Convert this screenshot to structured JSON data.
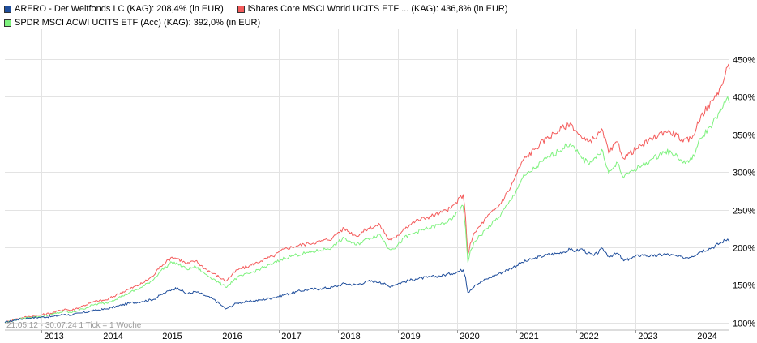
{
  "chart_data": {
    "type": "line",
    "legend_position": "top-left",
    "grid": true,
    "ylabel_side": "right",
    "ylim": [
      90,
      490
    ],
    "xlim": [
      2012.39,
      2024.58
    ],
    "y_ticks": [
      {
        "value": 100,
        "label": "100%"
      },
      {
        "value": 150,
        "label": "150%"
      },
      {
        "value": 200,
        "label": "200%"
      },
      {
        "value": 250,
        "label": "250%"
      },
      {
        "value": 300,
        "label": "300%"
      },
      {
        "value": 350,
        "label": "350%"
      },
      {
        "value": 400,
        "label": "400%"
      },
      {
        "value": 450,
        "label": "450%"
      }
    ],
    "x_ticks": [
      {
        "value": 2013,
        "label": "2013"
      },
      {
        "value": 2014,
        "label": "2014"
      },
      {
        "value": 2015,
        "label": "2015"
      },
      {
        "value": 2016,
        "label": "2016"
      },
      {
        "value": 2017,
        "label": "2017"
      },
      {
        "value": 2018,
        "label": "2018"
      },
      {
        "value": 2019,
        "label": "2019"
      },
      {
        "value": 2020,
        "label": "2020"
      },
      {
        "value": 2021,
        "label": "2021"
      },
      {
        "value": 2022,
        "label": "2022"
      },
      {
        "value": 2023,
        "label": "2023"
      },
      {
        "value": 2024,
        "label": "2024"
      }
    ],
    "footnote": "21.05.12 - 30.07.24   1 Tick = 1 Woche",
    "series": [
      {
        "name": "ARERO - Der Weltfonds LC (KAG): 208,4% (in EUR)",
        "color": "#1f4e9c",
        "swatch": "#1f4e9c",
        "x": [
          2012.39,
          2012.6,
          2012.8,
          2013.0,
          2013.2,
          2013.4,
          2013.5,
          2013.7,
          2013.9,
          2014.1,
          2014.3,
          2014.5,
          2014.7,
          2014.9,
          2015.0,
          2015.1,
          2015.2,
          2015.3,
          2015.45,
          2015.6,
          2015.75,
          2015.9,
          2016.05,
          2016.1,
          2016.3,
          2016.5,
          2016.7,
          2016.9,
          2017.1,
          2017.3,
          2017.5,
          2017.7,
          2017.9,
          2018.0,
          2018.1,
          2018.3,
          2018.5,
          2018.7,
          2018.85,
          2018.97,
          2019.1,
          2019.3,
          2019.5,
          2019.7,
          2019.9,
          2020.1,
          2020.14,
          2020.18,
          2020.22,
          2020.3,
          2020.5,
          2020.7,
          2020.9,
          2021.1,
          2021.3,
          2021.5,
          2021.7,
          2021.9,
          2022.0,
          2022.1,
          2022.2,
          2022.3,
          2022.45,
          2022.55,
          2022.7,
          2022.8,
          2022.9,
          2023.1,
          2023.3,
          2023.5,
          2023.7,
          2023.8,
          2023.95,
          2024.1,
          2024.3,
          2024.45,
          2024.55,
          2024.58
        ],
        "y": [
          100,
          104,
          106,
          107,
          108,
          111,
          110,
          113,
          116,
          118,
          122,
          126,
          128,
          131,
          136,
          140,
          144,
          146,
          138,
          141,
          136,
          131,
          122,
          118,
          126,
          128,
          130,
          133,
          137,
          141,
          144,
          145,
          147,
          149,
          152,
          150,
          155,
          154,
          148,
          151,
          154,
          158,
          160,
          162,
          165,
          170,
          160,
          140,
          143,
          150,
          158,
          165,
          172,
          180,
          185,
          190,
          192,
          197,
          195,
          198,
          192,
          189,
          198,
          188,
          192,
          182,
          185,
          190,
          188,
          191,
          188,
          186,
          188,
          195,
          200,
          207,
          211,
          208
        ]
      },
      {
        "name": "iShares Core MSCI World UCITS ETF ... (KAG): 436,8% (in EUR)",
        "color": "#f45b5b",
        "swatch": "#f45b5b",
        "x": [
          2012.39,
          2012.6,
          2012.8,
          2013.0,
          2013.2,
          2013.4,
          2013.5,
          2013.7,
          2013.9,
          2014.1,
          2014.3,
          2014.5,
          2014.7,
          2014.9,
          2015.0,
          2015.1,
          2015.2,
          2015.3,
          2015.45,
          2015.6,
          2015.75,
          2015.9,
          2016.05,
          2016.1,
          2016.3,
          2016.5,
          2016.7,
          2016.9,
          2017.1,
          2017.3,
          2017.5,
          2017.7,
          2017.9,
          2018.0,
          2018.1,
          2018.3,
          2018.5,
          2018.7,
          2018.85,
          2018.97,
          2019.1,
          2019.3,
          2019.5,
          2019.7,
          2019.9,
          2020.1,
          2020.14,
          2020.18,
          2020.22,
          2020.3,
          2020.5,
          2020.7,
          2020.9,
          2021.1,
          2021.3,
          2021.5,
          2021.7,
          2021.9,
          2022.0,
          2022.1,
          2022.2,
          2022.3,
          2022.45,
          2022.55,
          2022.7,
          2022.8,
          2022.9,
          2023.1,
          2023.3,
          2023.5,
          2023.7,
          2023.8,
          2023.95,
          2024.1,
          2024.3,
          2024.45,
          2024.55,
          2024.58
        ],
        "y": [
          100,
          105,
          108,
          110,
          113,
          118,
          116,
          122,
          128,
          130,
          138,
          145,
          152,
          163,
          175,
          180,
          187,
          185,
          178,
          182,
          172,
          165,
          158,
          155,
          170,
          175,
          182,
          188,
          198,
          202,
          205,
          208,
          212,
          220,
          225,
          215,
          225,
          230,
          210,
          212,
          225,
          235,
          240,
          245,
          252,
          270,
          240,
          190,
          205,
          220,
          240,
          255,
          280,
          315,
          330,
          345,
          355,
          365,
          355,
          345,
          340,
          345,
          355,
          325,
          340,
          318,
          325,
          335,
          345,
          355,
          350,
          340,
          345,
          375,
          395,
          415,
          440,
          437
        ]
      },
      {
        "name": "SPDR MSCI ACWI UCITS ETF (Acc) (KAG): 392,0% (in EUR)",
        "color": "#7ef27e",
        "swatch": "#7ef27e",
        "x": [
          2012.39,
          2012.6,
          2012.8,
          2013.0,
          2013.2,
          2013.4,
          2013.5,
          2013.7,
          2013.9,
          2014.1,
          2014.3,
          2014.5,
          2014.7,
          2014.9,
          2015.0,
          2015.1,
          2015.2,
          2015.3,
          2015.45,
          2015.6,
          2015.75,
          2015.9,
          2016.05,
          2016.1,
          2016.3,
          2016.5,
          2016.7,
          2016.9,
          2017.1,
          2017.3,
          2017.5,
          2017.7,
          2017.9,
          2018.0,
          2018.1,
          2018.3,
          2018.5,
          2018.7,
          2018.85,
          2018.97,
          2019.1,
          2019.3,
          2019.5,
          2019.7,
          2019.9,
          2020.1,
          2020.14,
          2020.18,
          2020.22,
          2020.3,
          2020.5,
          2020.7,
          2020.9,
          2021.1,
          2021.3,
          2021.5,
          2021.7,
          2021.9,
          2022.0,
          2022.1,
          2022.2,
          2022.3,
          2022.45,
          2022.55,
          2022.7,
          2022.8,
          2022.9,
          2023.1,
          2023.3,
          2023.5,
          2023.7,
          2023.8,
          2023.95,
          2024.1,
          2024.3,
          2024.45,
          2024.55,
          2024.58
        ],
        "y": [
          100,
          104,
          107,
          108,
          111,
          115,
          113,
          118,
          124,
          126,
          133,
          140,
          147,
          158,
          168,
          174,
          180,
          178,
          171,
          174,
          165,
          158,
          150,
          147,
          160,
          165,
          172,
          178,
          186,
          190,
          193,
          196,
          200,
          207,
          212,
          203,
          212,
          217,
          198,
          200,
          212,
          220,
          225,
          230,
          236,
          255,
          225,
          180,
          195,
          208,
          225,
          240,
          262,
          292,
          305,
          318,
          328,
          338,
          328,
          318,
          312,
          318,
          328,
          298,
          312,
          292,
          300,
          308,
          318,
          328,
          322,
          312,
          317,
          345,
          365,
          383,
          400,
          392
        ]
      }
    ]
  }
}
